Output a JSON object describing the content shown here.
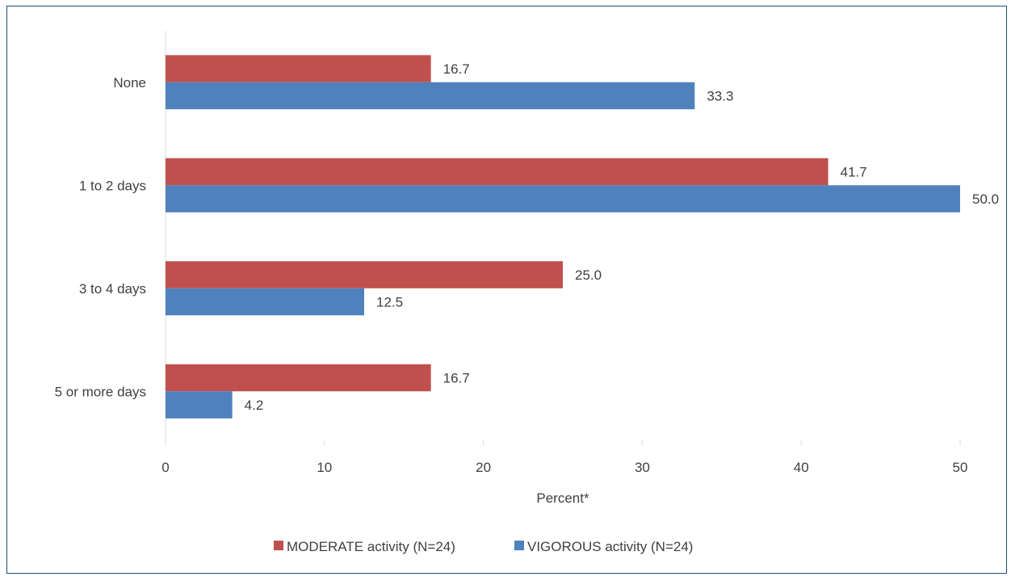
{
  "chart_data": {
    "type": "bar",
    "orientation": "horizontal",
    "categories": [
      "None",
      "1 to 2 days",
      "3 to 4 days",
      "5 or more days"
    ],
    "series": [
      {
        "name": "MODERATE activity (N=24)",
        "values": [
          16.7,
          41.7,
          25.0,
          16.7
        ],
        "color": "#c0504d"
      },
      {
        "name": "VIGOROUS activity (N=24)",
        "values": [
          33.3,
          50.0,
          12.5,
          4.2
        ],
        "color": "#4f81bd"
      }
    ],
    "data_labels": [
      [
        "16.7",
        "41.7",
        "25.0",
        "16.7"
      ],
      [
        "33.3",
        "50.0",
        "12.5",
        "4.2"
      ]
    ],
    "xlabel": "Percent*",
    "ylabel": "",
    "xlim": [
      0,
      50
    ],
    "xticks": [
      0,
      10,
      20,
      30,
      40,
      50
    ],
    "xtick_labels": [
      "0",
      "10",
      "20",
      "30",
      "40",
      "50"
    ],
    "grid": false,
    "legend_position": "bottom"
  }
}
